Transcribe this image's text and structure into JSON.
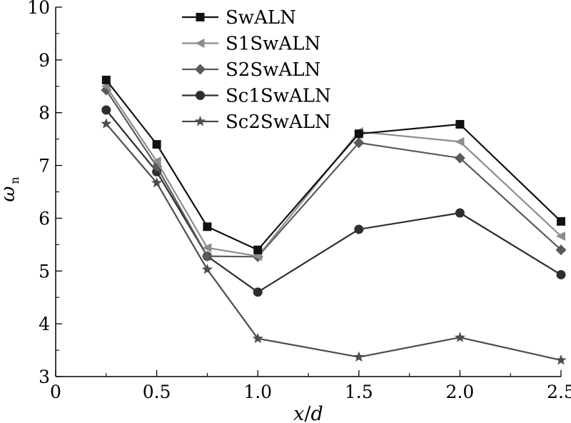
{
  "chart_data": {
    "type": "line",
    "title": "",
    "xlabel_var1": "x",
    "xlabel_sep": "/",
    "xlabel_var2": "d",
    "ylabel_sym": "ω",
    "ylabel_sub": "n",
    "xlim": [
      0,
      2.5
    ],
    "ylim": [
      3,
      10
    ],
    "x_ticks": [
      0,
      0.5,
      1.0,
      1.5,
      2.0,
      2.5
    ],
    "x_tick_labels": [
      "0",
      "0.5",
      "1.0",
      "1.5",
      "2.0",
      "2.5"
    ],
    "y_ticks": [
      3,
      4,
      5,
      6,
      7,
      8,
      9,
      10
    ],
    "y_tick_labels": [
      "3",
      "4",
      "5",
      "6",
      "7",
      "8",
      "9",
      "10"
    ],
    "grid": false,
    "legend_position": "top-center",
    "x": [
      0.25,
      0.5,
      0.75,
      1.0,
      1.5,
      2.0,
      2.5
    ],
    "series": [
      {
        "name": "SwALN",
        "marker": "square",
        "color": "#111111",
        "values": [
          8.62,
          7.4,
          5.84,
          5.4,
          7.6,
          7.78,
          5.94
        ]
      },
      {
        "name": "S1SwALN",
        "marker": "triangle",
        "color": "#8c8c8c",
        "values": [
          8.5,
          7.08,
          5.44,
          5.28,
          7.64,
          7.45,
          5.66
        ]
      },
      {
        "name": "S2SwALN",
        "marker": "diamond",
        "color": "#5a5a5a",
        "values": [
          8.43,
          6.98,
          5.28,
          5.27,
          7.43,
          7.14,
          5.4
        ]
      },
      {
        "name": "Sc1SwALN",
        "marker": "circle",
        "color": "#2e2e2e",
        "values": [
          8.05,
          6.88,
          5.28,
          4.6,
          5.79,
          6.1,
          4.93
        ]
      },
      {
        "name": "Sc2SwALN",
        "marker": "star",
        "color": "#4d4d4d",
        "values": [
          7.79,
          6.67,
          5.03,
          3.72,
          3.37,
          3.74,
          3.31
        ]
      }
    ]
  }
}
